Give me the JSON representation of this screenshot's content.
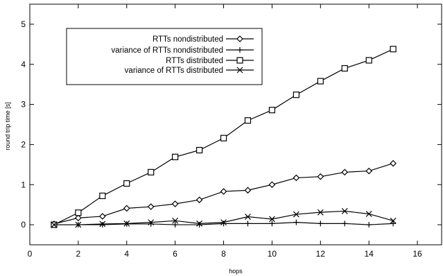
{
  "chart_data": {
    "type": "line",
    "xlabel": "hops",
    "ylabel": "round trip time [s]",
    "xlim": [
      0,
      17
    ],
    "ylim": [
      -0.5,
      5.5
    ],
    "xticks": [
      "0",
      "2",
      "4",
      "6",
      "8",
      "10",
      "12",
      "14",
      "16"
    ],
    "yticks": [
      "0",
      "1",
      "2",
      "3",
      "4",
      "5"
    ],
    "grid": false,
    "legend_position": "top-left",
    "x": [
      1,
      2,
      3,
      4,
      5,
      6,
      7,
      8,
      9,
      10,
      11,
      12,
      13,
      14,
      15
    ],
    "series": [
      {
        "name": "RTTs nondistributed",
        "marker": "diamond",
        "values": [
          0.02,
          0.17,
          0.21,
          0.41,
          0.45,
          0.52,
          0.62,
          0.83,
          0.86,
          1.0,
          1.17,
          1.2,
          1.31,
          1.34,
          1.53
        ]
      },
      {
        "name": "variance of RTTs nondistributed",
        "marker": "plus",
        "values": [
          0.0,
          0.0,
          0.0,
          0.02,
          0.02,
          0.0,
          0.0,
          0.03,
          0.03,
          0.03,
          0.06,
          0.03,
          0.03,
          0.0,
          0.03
        ]
      },
      {
        "name": "RTTs distributed",
        "marker": "square",
        "values": [
          0.0,
          0.3,
          0.72,
          1.03,
          1.31,
          1.69,
          1.86,
          2.16,
          2.6,
          2.86,
          3.24,
          3.58,
          3.9,
          4.1,
          4.38
        ]
      },
      {
        "name": "variance of RTTs distributed",
        "marker": "cross",
        "values": [
          0.0,
          0.0,
          0.02,
          0.03,
          0.06,
          0.1,
          0.03,
          0.06,
          0.2,
          0.14,
          0.26,
          0.31,
          0.34,
          0.27,
          0.1
        ]
      }
    ]
  },
  "colors": {
    "line": "#000000",
    "background": "#ffffff"
  }
}
